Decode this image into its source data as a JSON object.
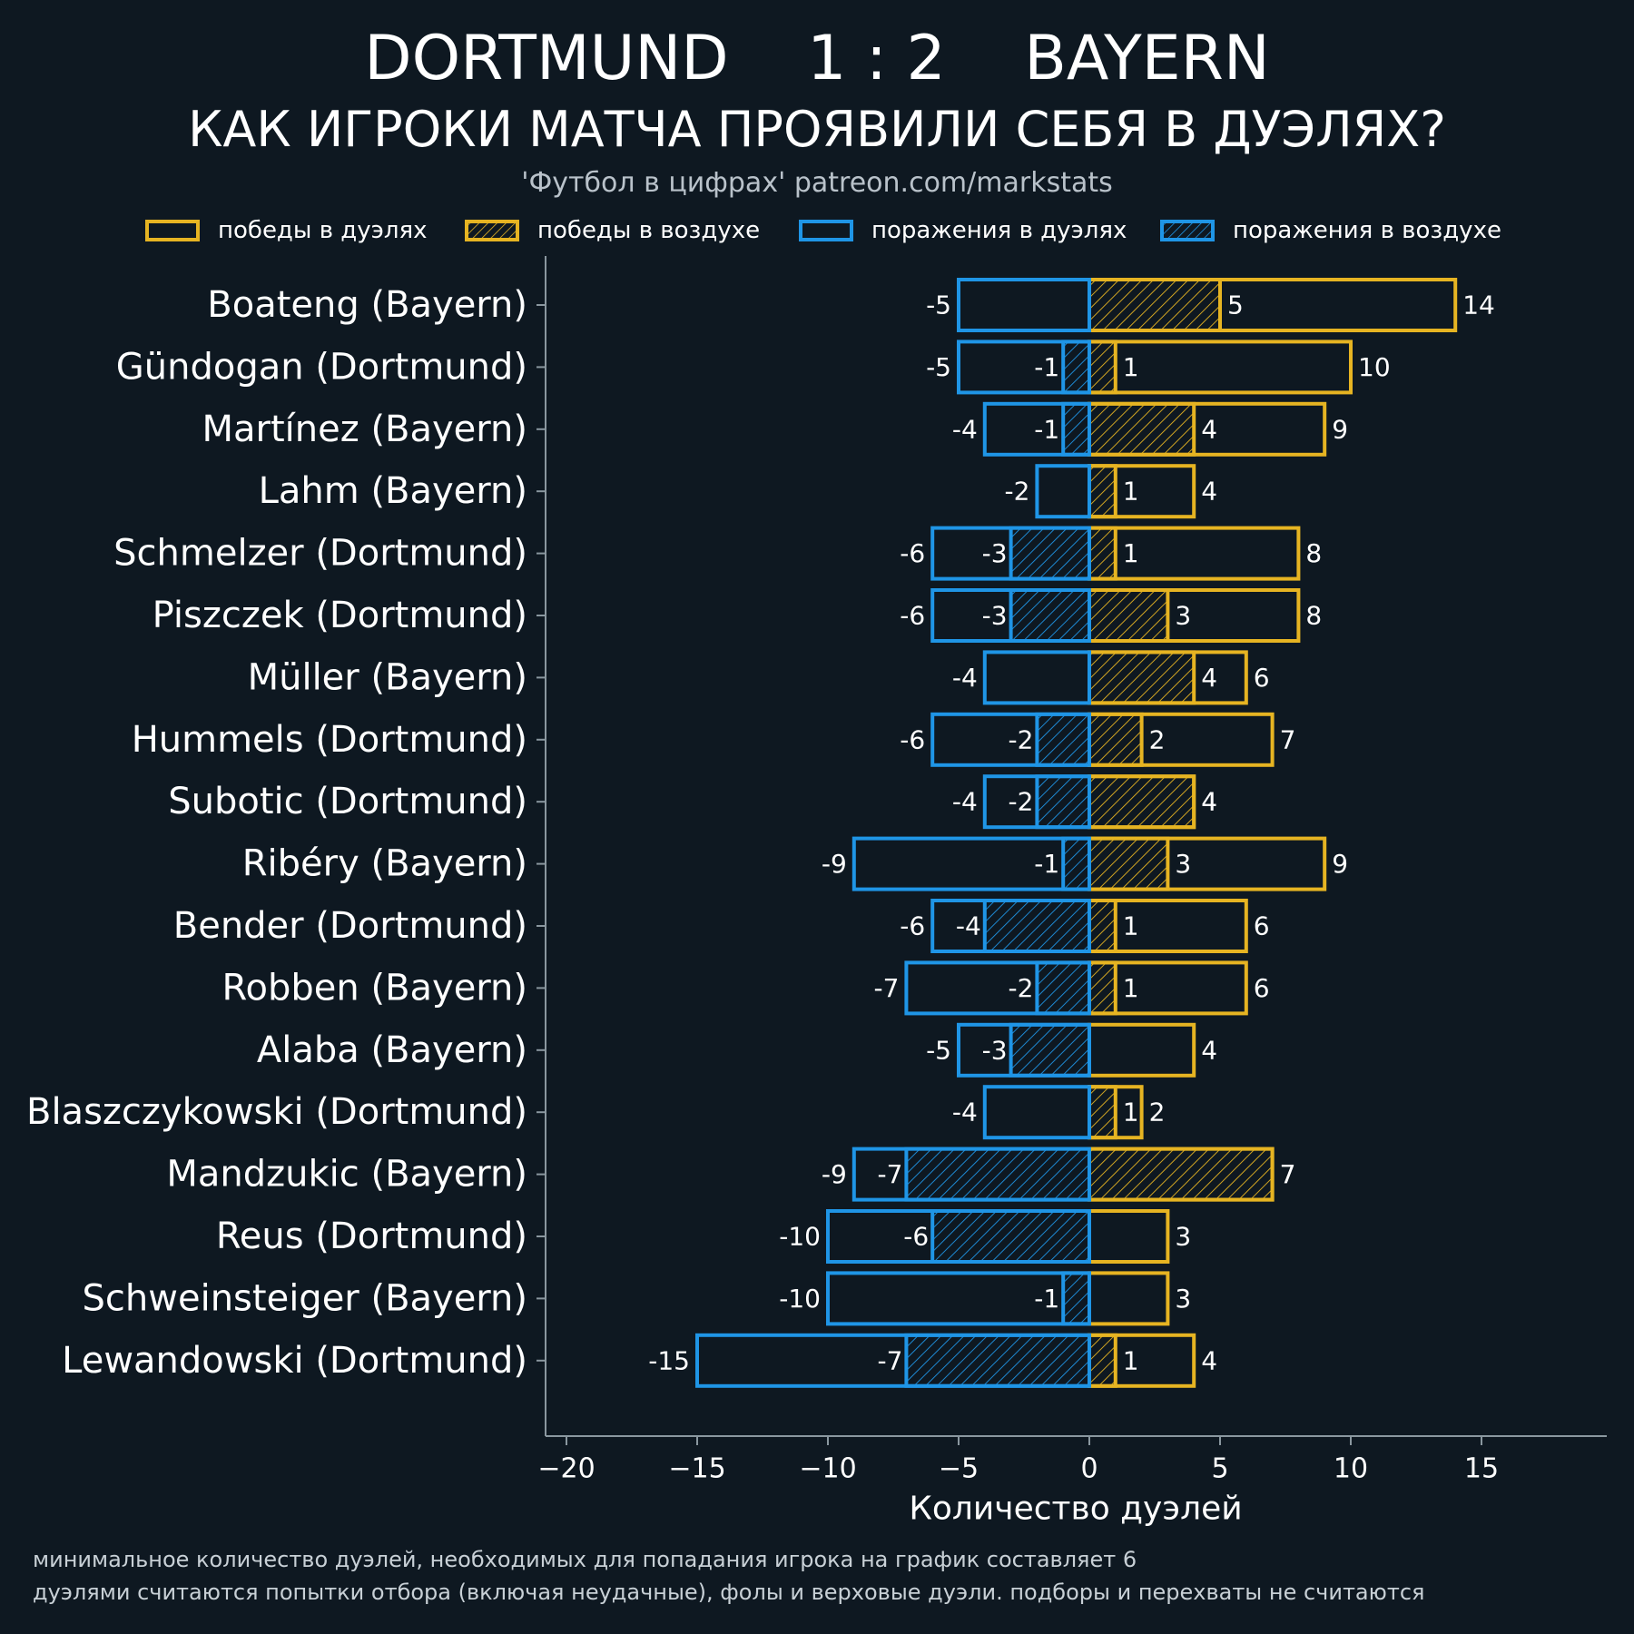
{
  "header": {
    "title": "DORTMUND    1 : 2    BAYERN",
    "subtitle": "КАК ИГРОКИ МАТЧА ПРОЯВИЛИ СЕБЯ В ДУЭЛЯХ?",
    "credit": "'Футбол в цифрах' patreon.com/markstats"
  },
  "legend": [
    {
      "label": "победы в дуэлях",
      "color": "#e6b422",
      "hatch": false
    },
    {
      "label": "победы в воздухе",
      "color": "#e6b422",
      "hatch": true
    },
    {
      "label": "поражения в дуэлях",
      "color": "#1f95e6",
      "hatch": false
    },
    {
      "label": "поражения в воздухе",
      "color": "#1f95e6",
      "hatch": true
    }
  ],
  "footnotes": [
    "минимальное количество дуэлей, необходимых для попадания игрока на график составляет 6",
    "дуэлями считаются попытки отбора (включая неудачные), фолы и верховые дуэли. подборы и перехваты не считаются"
  ],
  "colors": {
    "background": "#0e1821",
    "won": "#e6b422",
    "lost": "#1f95e6",
    "axis": "#8a979f"
  },
  "chart_data": {
    "type": "bar",
    "orientation": "horizontal",
    "xlabel": "Количество дуэлей",
    "ylabel": "",
    "xlim": [
      -20,
      19.5
    ],
    "xticks": [
      -20,
      -15,
      -10,
      -5,
      0,
      5,
      10,
      15
    ],
    "categories": [
      "Boateng (Bayern)",
      "Gündogan (Dortmund)",
      "Martínez (Bayern)",
      "Lahm (Bayern)",
      "Schmelzer (Dortmund)",
      "Piszczek (Dortmund)",
      "Müller (Bayern)",
      "Hummels (Dortmund)",
      "Subotic (Dortmund)",
      "Ribéry (Bayern)",
      "Bender (Dortmund)",
      "Robben (Bayern)",
      "Alaba (Bayern)",
      "Blaszczykowski (Dortmund)",
      "Mandzukic (Bayern)",
      "Reus (Dortmund)",
      "Schweinsteiger (Bayern)",
      "Lewandowski (Dortmund)"
    ],
    "series": [
      {
        "name": "победы в дуэлях",
        "values": [
          14,
          10,
          9,
          4,
          8,
          8,
          6,
          7,
          4,
          9,
          6,
          6,
          4,
          2,
          7,
          3,
          3,
          4
        ]
      },
      {
        "name": "победы в воздухе",
        "values": [
          5,
          1,
          4,
          1,
          1,
          3,
          4,
          2,
          4,
          3,
          1,
          1,
          0,
          1,
          7,
          0,
          0,
          1
        ]
      },
      {
        "name": "поражения в дуэлях",
        "values": [
          -5,
          -5,
          -4,
          -2,
          -6,
          -6,
          -4,
          -6,
          -4,
          -9,
          -6,
          -7,
          -5,
          -4,
          -9,
          -10,
          -10,
          -15
        ]
      },
      {
        "name": "поражения в воздухе",
        "values": [
          0,
          -1,
          -1,
          0,
          -3,
          -3,
          0,
          -2,
          -2,
          -1,
          -4,
          -2,
          -3,
          0,
          -7,
          -6,
          -1,
          -7
        ]
      }
    ]
  }
}
